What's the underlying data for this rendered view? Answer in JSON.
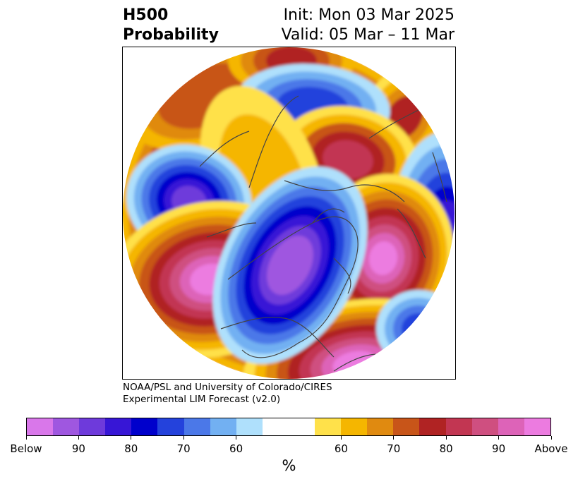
{
  "title": {
    "left_line1": "H500",
    "left_line2": "Probability",
    "right_line1": "Init: Mon 03 Mar 2025",
    "right_line2": "Valid: 05 Mar – 11 Mar"
  },
  "credit": {
    "line1": "NOAA/PSL and University of Colorado/CIRES",
    "line2": "Experimental LIM Forecast (v2.0)"
  },
  "colorbar": {
    "colors": [
      "#d977ea",
      "#9f57e0",
      "#6e3adb",
      "#3716d6",
      "#0000cc",
      "#2442dc",
      "#4b78e8",
      "#72b0f2",
      "#afe0fc",
      "#ffffff",
      "#ffffff",
      "#ffe14a",
      "#f5b600",
      "#e08a10",
      "#c85519",
      "#b02323",
      "#c23652",
      "#cf4f80",
      "#dd63b8",
      "#ec7be0"
    ],
    "tick_labels": [
      "Below",
      "90",
      "80",
      "70",
      "60",
      "60",
      "70",
      "80",
      "90",
      "Above"
    ],
    "unit": "%"
  },
  "map_colors": {
    "white": "#ffffff",
    "y1": "#ffe14a",
    "y2": "#f5b600",
    "o1": "#e08a10",
    "o2": "#c85519",
    "r1": "#b02323",
    "r2": "#c23652",
    "p1": "#cf4f80",
    "p2": "#dd63b8",
    "m": "#ec7be0",
    "b1": "#afe0fc",
    "b2": "#72b0f2",
    "b3": "#4b78e8",
    "b4": "#2442dc",
    "b5": "#0000cc",
    "v1": "#3716d6",
    "v2": "#6e3adb",
    "v3": "#9f57e0",
    "coast": "#444444"
  }
}
